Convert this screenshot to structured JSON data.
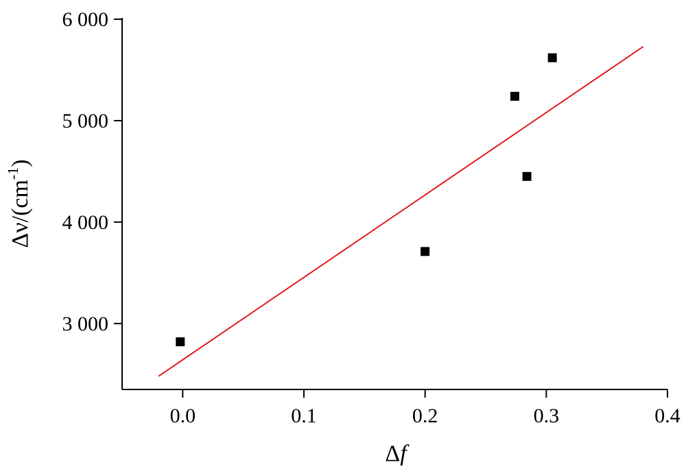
{
  "chart_data": {
    "type": "scatter",
    "xlabel_prefix": "Δ",
    "xlabel_var": "f",
    "ylabel_main": "Δν/(cm",
    "ylabel_sup": "-1",
    "ylabel_close": ")",
    "xlim": [
      -0.05,
      0.4
    ],
    "ylim": [
      2350,
      6000
    ],
    "xticks": [
      0.0,
      0.1,
      0.2,
      0.3,
      0.4
    ],
    "xtick_labels": [
      "0.0",
      "0.1",
      "0.2",
      "0.3",
      "0.4"
    ],
    "yticks": [
      3000,
      4000,
      5000,
      6000
    ],
    "ytick_labels": [
      "3 000",
      "4 000",
      "5 000",
      "6 000"
    ],
    "grid": false,
    "points": [
      {
        "x": -0.002,
        "y": 2820
      },
      {
        "x": 0.2,
        "y": 3710
      },
      {
        "x": 0.274,
        "y": 5240
      },
      {
        "x": 0.284,
        "y": 4450
      },
      {
        "x": 0.305,
        "y": 5620
      }
    ],
    "fit_line": {
      "x": [
        -0.02,
        0.38
      ],
      "y": [
        2480,
        5730
      ]
    },
    "colors": {
      "points": "#000000",
      "fit_line": "#e31a1c",
      "axes": "#000000"
    }
  }
}
